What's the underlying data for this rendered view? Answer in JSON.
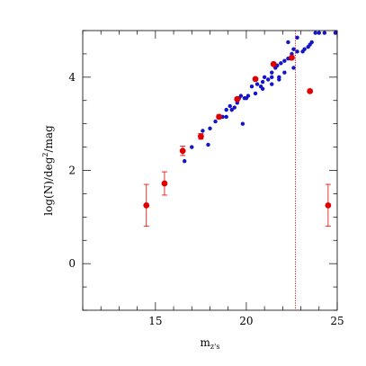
{
  "chart_data": {
    "type": "scatter",
    "title": "",
    "xlabel": "m",
    "xlabel_sub": "z's",
    "ylabel": "log(N)/deg",
    "ylabel_sup": "2",
    "ylabel_tail": "/mag",
    "xlim": [
      11,
      25
    ],
    "ylim": [
      -1,
      5
    ],
    "x_ticks": [
      15,
      20,
      25
    ],
    "x_tick_labels": [
      "15",
      "20",
      "25"
    ],
    "y_ticks": [
      0,
      2,
      4
    ],
    "y_tick_labels": [
      "0",
      "2",
      "4"
    ],
    "grid": false,
    "legend": "none",
    "vline": {
      "x": 22.7,
      "color": "#d00000",
      "style": "dotted"
    },
    "series": [
      {
        "color": "#1414c8",
        "marker": "dot",
        "points": [
          [
            16.6,
            2.2
          ],
          [
            17.0,
            2.5
          ],
          [
            17.5,
            2.7
          ],
          [
            17.6,
            2.85
          ],
          [
            17.9,
            2.55
          ],
          [
            18.0,
            2.9
          ],
          [
            18.3,
            3.05
          ],
          [
            18.5,
            3.15
          ],
          [
            18.7,
            3.15
          ],
          [
            18.9,
            3.3
          ],
          [
            18.9,
            3.15
          ],
          [
            19.1,
            3.38
          ],
          [
            19.2,
            3.3
          ],
          [
            19.35,
            3.35
          ],
          [
            19.5,
            3.45
          ],
          [
            19.6,
            3.55
          ],
          [
            19.7,
            3.6
          ],
          [
            19.8,
            3.0
          ],
          [
            19.9,
            3.55
          ],
          [
            20.0,
            3.55
          ],
          [
            20.1,
            3.6
          ],
          [
            20.3,
            3.8
          ],
          [
            20.5,
            3.65
          ],
          [
            20.6,
            3.85
          ],
          [
            20.8,
            3.8
          ],
          [
            20.9,
            3.9
          ],
          [
            20.9,
            3.75
          ],
          [
            21.0,
            4.0
          ],
          [
            21.2,
            3.95
          ],
          [
            21.4,
            4.0
          ],
          [
            21.4,
            4.1
          ],
          [
            21.4,
            3.85
          ],
          [
            21.6,
            4.2
          ],
          [
            21.7,
            4.25
          ],
          [
            21.8,
            4.0
          ],
          [
            21.8,
            3.95
          ],
          [
            21.9,
            4.3
          ],
          [
            22.1,
            4.35
          ],
          [
            22.1,
            4.1
          ],
          [
            22.3,
            4.4
          ],
          [
            22.4,
            4.4
          ],
          [
            22.5,
            4.5
          ],
          [
            22.6,
            4.6
          ],
          [
            22.6,
            4.2
          ],
          [
            22.8,
            4.55
          ],
          [
            22.8,
            4.85
          ],
          [
            23.1,
            4.55
          ],
          [
            23.4,
            4.65
          ],
          [
            23.5,
            4.7
          ],
          [
            23.6,
            4.75
          ],
          [
            23.8,
            4.95
          ],
          [
            24.0,
            4.95
          ],
          [
            24.3,
            4.95
          ],
          [
            24.9,
            4.95
          ],
          [
            23.2,
            4.6
          ],
          [
            22.3,
            4.75
          ]
        ]
      },
      {
        "color": "#e00000",
        "marker": "errorbar",
        "points": [
          {
            "x": 14.5,
            "y": 1.25,
            "yerr": 0.45
          },
          {
            "x": 15.5,
            "y": 1.72,
            "yerr": 0.25
          },
          {
            "x": 16.5,
            "y": 2.42,
            "yerr": 0.1
          },
          {
            "x": 17.5,
            "y": 2.73,
            "yerr": 0.06
          },
          {
            "x": 18.5,
            "y": 3.15,
            "yerr": 0.04
          },
          {
            "x": 19.5,
            "y": 3.53,
            "yerr": 0.03
          },
          {
            "x": 20.5,
            "y": 3.96,
            "yerr": 0.02
          },
          {
            "x": 21.5,
            "y": 4.28,
            "yerr": 0.02
          },
          {
            "x": 22.5,
            "y": 4.42,
            "yerr": 0.02
          },
          {
            "x": 23.5,
            "y": 3.7,
            "yerr": 0.03
          },
          {
            "x": 24.5,
            "y": 1.25,
            "yerr": 0.45
          }
        ]
      }
    ]
  }
}
